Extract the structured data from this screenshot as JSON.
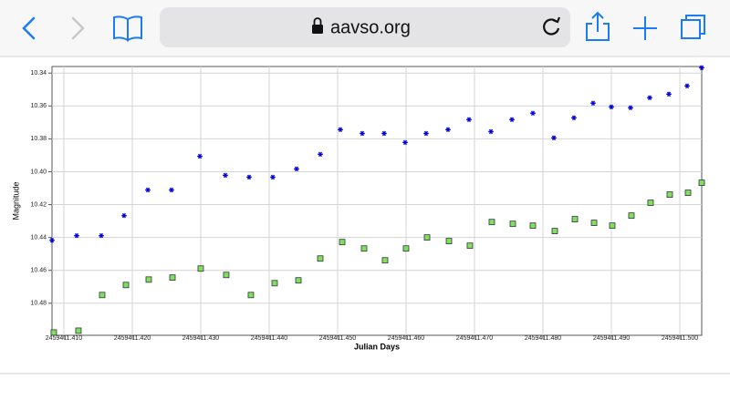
{
  "browser": {
    "url": "aavso.org"
  },
  "chart_data": {
    "type": "scatter",
    "xlabel": "Julian Days",
    "ylabel": "Magnitude",
    "xlim": [
      2459411.40827,
      2459411.5032
    ],
    "ylim": [
      10.336,
      10.4995
    ],
    "y_inverted": true,
    "grid": true,
    "xticks": [
      {
        "value": 2459411.41,
        "label": "2459411.410"
      },
      {
        "value": 2459411.42,
        "label": "2459411.420"
      },
      {
        "value": 2459411.43,
        "label": "2459411.430"
      },
      {
        "value": 2459411.44,
        "label": "2459411.440"
      },
      {
        "value": 2459411.45,
        "label": "2459411.450"
      },
      {
        "value": 2459411.46,
        "label": "2459411.460"
      },
      {
        "value": 2459411.47,
        "label": "2459411.470"
      },
      {
        "value": 2459411.48,
        "label": "2459411.480"
      },
      {
        "value": 2459411.49,
        "label": "2459411.490"
      },
      {
        "value": 2459411.5,
        "label": "2459411.500"
      }
    ],
    "yticks": [
      10.34,
      10.36,
      10.38,
      {
        "value": 10.4,
        "label": "10.40"
      },
      10.42,
      10.44,
      10.46,
      10.48
    ],
    "series": [
      {
        "color": "#0000dd",
        "marker": "star",
        "x": [
          2459411.40827,
          2459411.41187,
          2459411.41547,
          2459411.4188,
          2459411.42227,
          2459411.42573,
          2459411.42987,
          2459411.4336,
          2459411.43707,
          2459411.44053,
          2459411.444,
          2459411.44747,
          2459411.4504,
          2459411.4536,
          2459411.4568,
          2459411.45987,
          2459411.46293,
          2459411.46613,
          2459411.4692,
          2459411.4724,
          2459411.47547,
          2459411.47853,
          2459411.4816,
          2459411.48453,
          2459411.48733,
          2459411.49,
          2459411.4928,
          2459411.4956,
          2459411.4984,
          2459411.50107,
          2459411.5032
        ],
        "values": [
          10.4417,
          10.4389,
          10.4389,
          10.4267,
          10.4111,
          10.4111,
          10.3906,
          10.4022,
          10.4033,
          10.4033,
          10.3983,
          10.3894,
          10.3744,
          10.3767,
          10.3767,
          10.3822,
          10.3767,
          10.3744,
          10.3683,
          10.3756,
          10.3683,
          10.3644,
          10.3794,
          10.3672,
          10.3583,
          10.3606,
          10.3611,
          10.355,
          10.3528,
          10.3478,
          10.3367
        ]
      },
      {
        "color": "#7fe05a",
        "marker": "square",
        "x": [
          2459411.40853,
          2459411.41213,
          2459411.4156,
          2459411.41907,
          2459411.4224,
          2459411.42587,
          2459411.43,
          2459411.43373,
          2459411.43733,
          2459411.4408,
          2459411.44427,
          2459411.44747,
          2459411.45067,
          2459411.45387,
          2459411.45693,
          2459411.46,
          2459411.46307,
          2459411.46627,
          2459411.46933,
          2459411.47253,
          2459411.4756,
          2459411.47853,
          2459411.48173,
          2459411.48467,
          2459411.48747,
          2459411.49013,
          2459411.49293,
          2459411.49573,
          2459411.49853,
          2459411.5012,
          2459411.5032
        ],
        "values": [
          10.4978,
          10.4967,
          10.475,
          10.4689,
          10.4656,
          10.4644,
          10.4589,
          10.4628,
          10.475,
          10.4678,
          10.4661,
          10.4528,
          10.4428,
          10.4467,
          10.4539,
          10.4467,
          10.44,
          10.4422,
          10.445,
          10.4306,
          10.4317,
          10.4328,
          10.4361,
          10.4289,
          10.4311,
          10.4328,
          10.4267,
          10.4189,
          10.4139,
          10.4128,
          10.4067
        ]
      }
    ]
  }
}
